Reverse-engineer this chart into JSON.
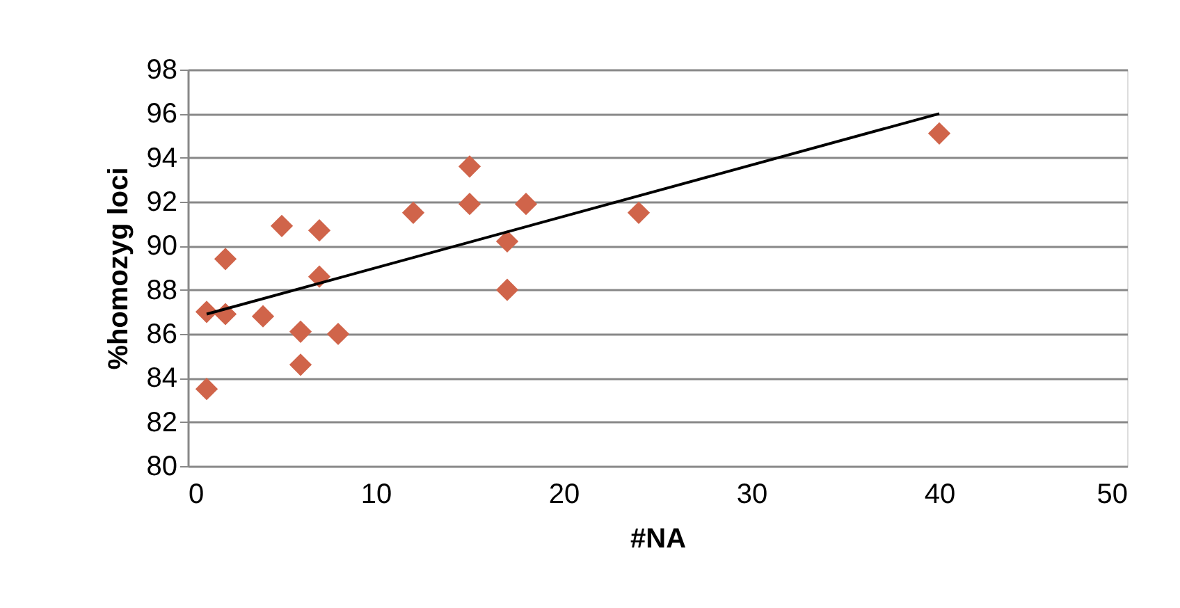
{
  "chart_data": {
    "type": "scatter",
    "xlabel": "#NA",
    "ylabel": "%homozyg loci",
    "xlim": [
      0,
      50
    ],
    "xticks": [
      0,
      10,
      20,
      30,
      40,
      50
    ],
    "ylim": [
      80,
      98
    ],
    "yticks": [
      80,
      82,
      84,
      86,
      88,
      90,
      92,
      94,
      96,
      98
    ],
    "grid": "y",
    "legend": false,
    "marker": "diamond",
    "series": [
      {
        "type": "scatter",
        "color": "#d0644a",
        "x": [
          1,
          1,
          2,
          2,
          4,
          5,
          6,
          6,
          7,
          7,
          8,
          12,
          15,
          15,
          17,
          17,
          18,
          24,
          40
        ],
        "values": [
          87.0,
          83.5,
          89.4,
          86.9,
          86.8,
          90.9,
          86.1,
          84.6,
          90.7,
          88.6,
          86.0,
          91.5,
          93.6,
          91.9,
          90.2,
          88.0,
          91.9,
          91.5,
          95.1
        ]
      },
      {
        "type": "line",
        "color": "#000000",
        "line_style": "solid",
        "marker": "none",
        "x": [
          1,
          40
        ],
        "values": [
          86.9,
          96.0
        ]
      }
    ]
  }
}
